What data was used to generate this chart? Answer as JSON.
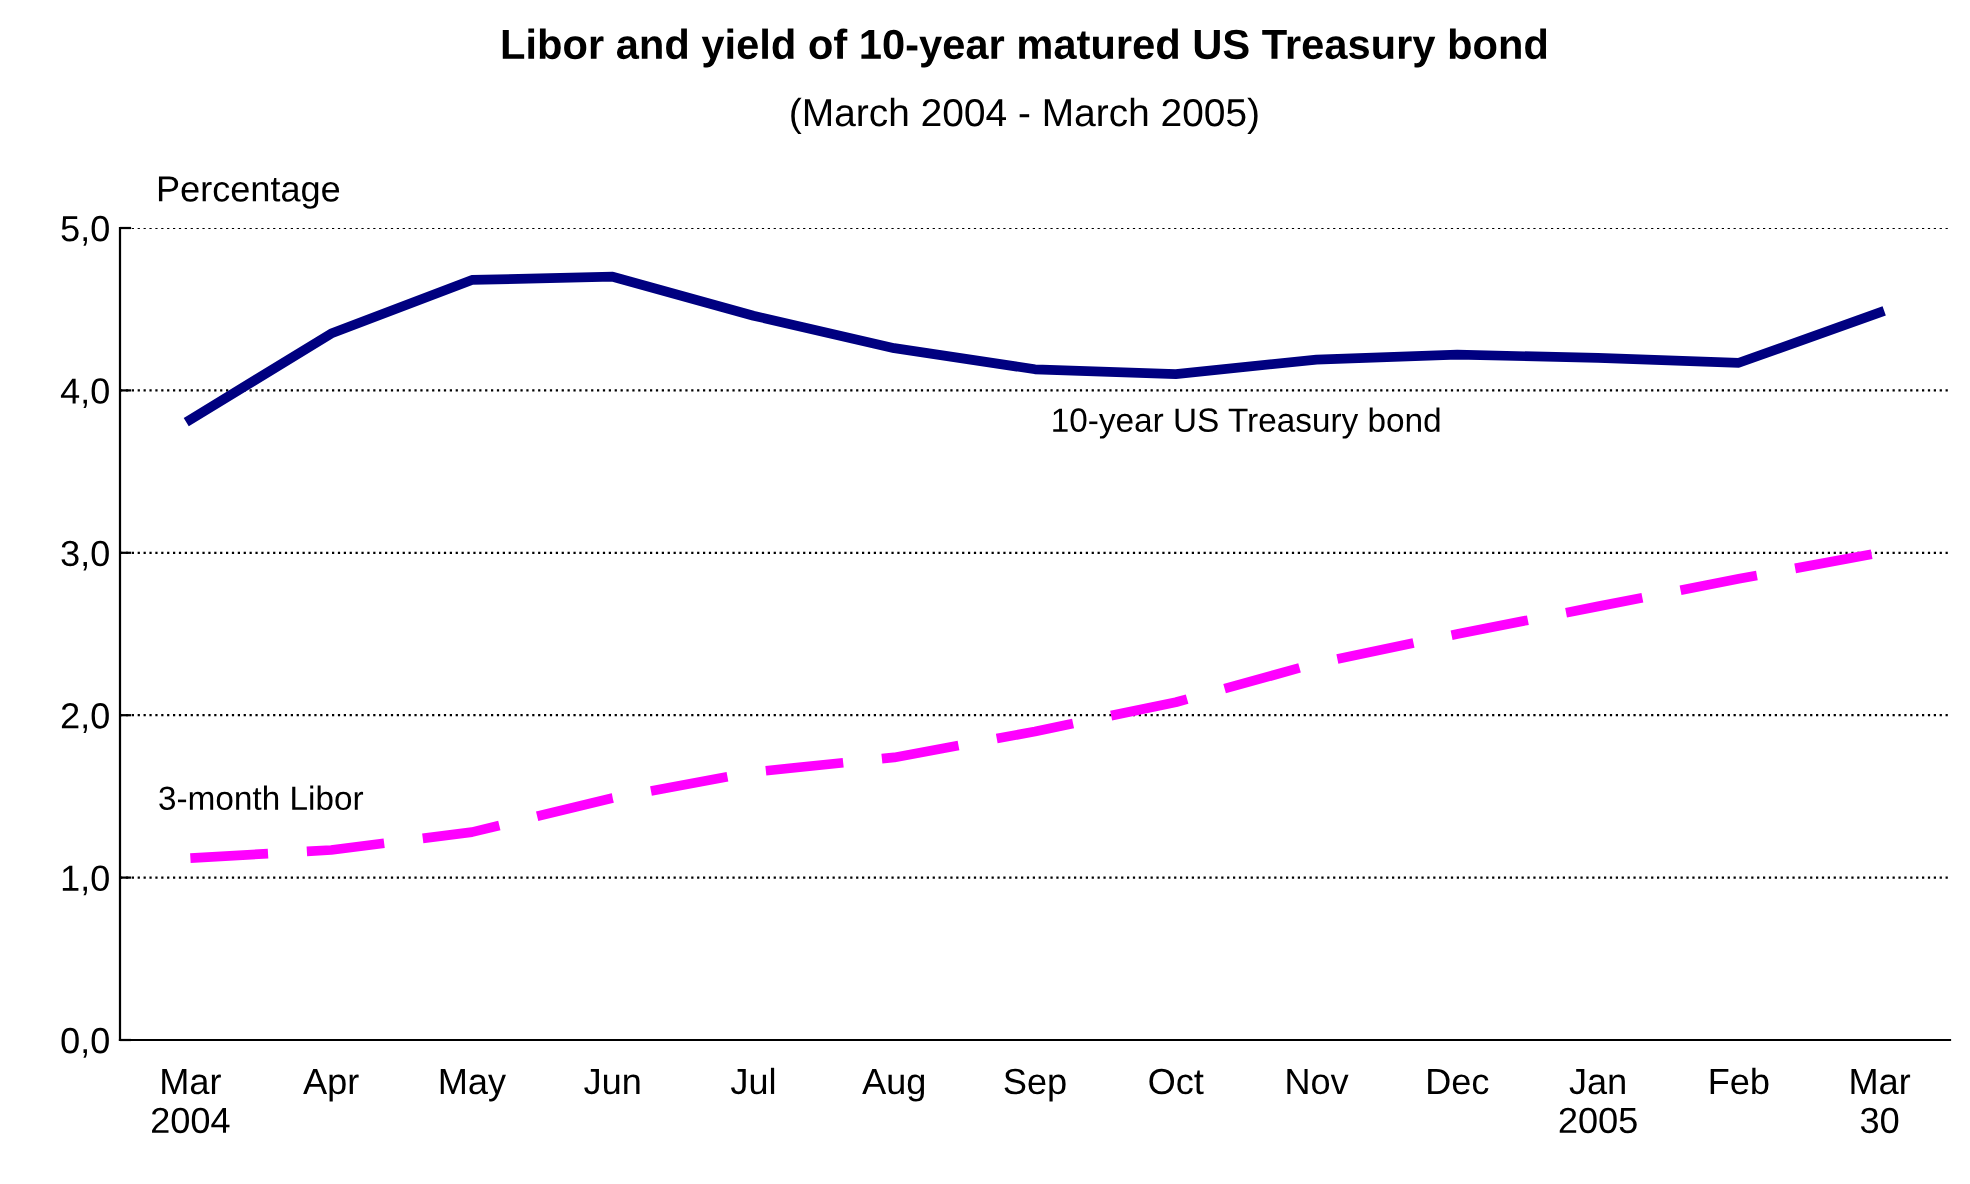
{
  "chart_data": {
    "type": "line",
    "title": "Libor and yield of 10-year matured US Treasury bond",
    "subtitle": "(March 2004 - March 2005)",
    "ylabel": "Percentage",
    "categories": [
      "Mar\n2004",
      "Apr",
      "May",
      "Jun",
      "Jul",
      "Aug",
      "Sep",
      "Oct",
      "Nov",
      "Dec",
      "Jan\n2005",
      "Feb",
      "Mar\n30"
    ],
    "series": [
      {
        "name": "10-year US Treasury bond",
        "color": "#000080",
        "line_style": "solid",
        "values": [
          3.82,
          4.35,
          4.68,
          4.7,
          4.46,
          4.26,
          4.13,
          4.1,
          4.19,
          4.22,
          4.2,
          4.17,
          4.48
        ]
      },
      {
        "name": "3-month Libor",
        "color": "#ff00ff",
        "line_style": "dashed",
        "values": [
          1.12,
          1.17,
          1.28,
          1.49,
          1.65,
          1.74,
          1.9,
          2.08,
          2.32,
          2.5,
          2.67,
          2.84,
          3.0
        ]
      }
    ],
    "ylim": [
      0,
      5
    ],
    "yticks": [
      {
        "value": 0,
        "label": "0,0"
      },
      {
        "value": 1,
        "label": "1,0"
      },
      {
        "value": 2,
        "label": "2,0"
      },
      {
        "value": 3,
        "label": "3,0"
      },
      {
        "value": 4,
        "label": "4,0"
      },
      {
        "value": 5,
        "label": "5,0"
      }
    ],
    "grid": "y",
    "legend": false,
    "marker": "none"
  }
}
